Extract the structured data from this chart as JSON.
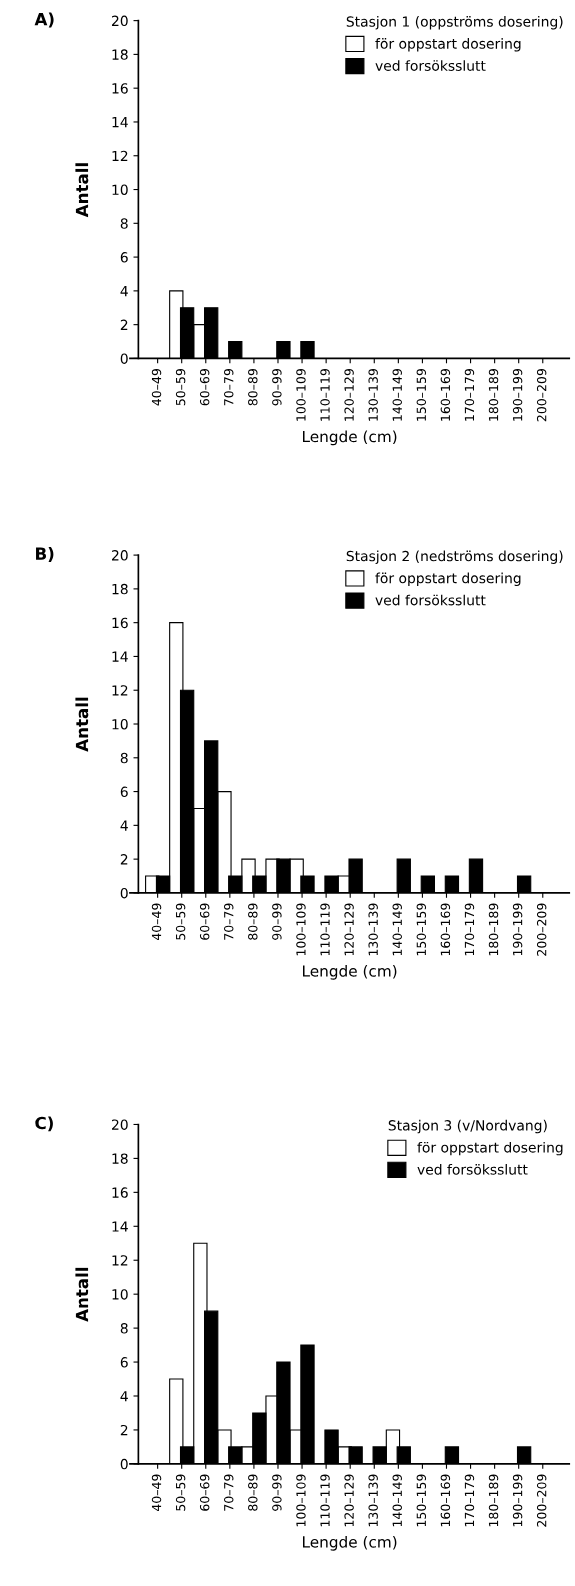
{
  "chart_data": [
    {
      "type": "bar",
      "title": "A)",
      "legend_title": "Stasjon 1 (oppströms dosering)",
      "xlabel": "Lengde (cm)",
      "ylabel": "Antall",
      "categories": [
        "40–49",
        "50–59",
        "60–69",
        "70–79",
        "80–89",
        "90–99",
        "100–109",
        "110–119",
        "120–129",
        "130–139",
        "140–149",
        "150–159",
        "160–169",
        "170–179",
        "180–189",
        "190–199",
        "200–209"
      ],
      "series": [
        {
          "name": "för oppstart dosering",
          "color": "#ffffff",
          "values": [
            0,
            4,
            2,
            0,
            0,
            0,
            0,
            0,
            0,
            0,
            0,
            0,
            0,
            0,
            0,
            0,
            0
          ]
        },
        {
          "name": "ved forsöksslutt",
          "color": "#000000",
          "values": [
            0,
            3,
            3,
            1,
            0,
            1,
            1,
            0,
            0,
            0,
            0,
            0,
            0,
            0,
            0,
            0,
            0
          ]
        }
      ],
      "ylim": [
        0,
        20
      ],
      "yticks": [
        0,
        2,
        4,
        6,
        8,
        10,
        12,
        14,
        16,
        18,
        20
      ],
      "legend": "top right",
      "grid": false
    },
    {
      "type": "bar",
      "title": "B)",
      "legend_title": "Stasjon 2 (nedströms dosering)",
      "xlabel": "Lengde (cm)",
      "ylabel": "Antall",
      "categories": [
        "40–49",
        "50–59",
        "60–69",
        "70–79",
        "80–89",
        "90–99",
        "100–109",
        "110–119",
        "120–129",
        "130–139",
        "140–149",
        "150–159",
        "160–169",
        "170–179",
        "180–189",
        "190–199",
        "200–209"
      ],
      "series": [
        {
          "name": "för oppstart dosering",
          "color": "#ffffff",
          "values": [
            1,
            16,
            5,
            6,
            2,
            2,
            2,
            0,
            1,
            0,
            0,
            0,
            0,
            0,
            0,
            0,
            0
          ]
        },
        {
          "name": "ved forsöksslutt",
          "color": "#000000",
          "values": [
            1,
            12,
            9,
            1,
            1,
            2,
            1,
            1,
            2,
            0,
            2,
            1,
            1,
            2,
            0,
            1,
            0
          ]
        }
      ],
      "ylim": [
        0,
        20
      ],
      "yticks": [
        0,
        2,
        4,
        6,
        8,
        10,
        12,
        14,
        16,
        18,
        20
      ],
      "legend": "top right",
      "grid": false
    },
    {
      "type": "bar",
      "title": "C)",
      "legend_title": "Stasjon 3 (v/Nordvang)",
      "xlabel": "Lengde (cm)",
      "ylabel": "Antall",
      "categories": [
        "40–49",
        "50–59",
        "60–69",
        "70–79",
        "80–89",
        "90–99",
        "100–109",
        "110–119",
        "120–129",
        "130–139",
        "140–149",
        "150–159",
        "160–169",
        "170–179",
        "180–189",
        "190–199",
        "200–209"
      ],
      "series": [
        {
          "name": "för oppstart dosering",
          "color": "#ffffff",
          "values": [
            0,
            5,
            13,
            2,
            1,
            4,
            2,
            0,
            1,
            0,
            2,
            0,
            0,
            0,
            0,
            0,
            0
          ]
        },
        {
          "name": "ved forsöksslutt",
          "color": "#000000",
          "values": [
            0,
            1,
            9,
            1,
            3,
            6,
            7,
            2,
            1,
            1,
            1,
            0,
            1,
            0,
            0,
            1,
            0
          ]
        }
      ],
      "ylim": [
        0,
        20
      ],
      "yticks": [
        0,
        2,
        4,
        6,
        8,
        10,
        12,
        14,
        16,
        18,
        20
      ],
      "legend": "top right",
      "grid": false
    }
  ]
}
